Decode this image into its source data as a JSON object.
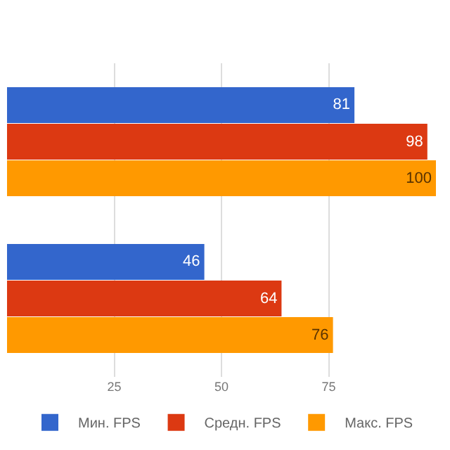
{
  "chart_data": {
    "type": "bar",
    "orientation": "horizontal",
    "categories": [
      null,
      null
    ],
    "series": [
      {
        "name": "Мин. FPS",
        "color": "#3366cc",
        "values": [
          81,
          46
        ]
      },
      {
        "name": "Средн. FPS",
        "color": "#dc3912",
        "values": [
          98,
          64
        ]
      },
      {
        "name": "Макс. FPS",
        "color": "#ff9900",
        "values": [
          100,
          76
        ]
      }
    ],
    "xlim": [
      0,
      100
    ],
    "xticks": [
      25,
      50,
      75
    ],
    "grid": "x",
    "legend": "bottom",
    "data_labels": true
  }
}
